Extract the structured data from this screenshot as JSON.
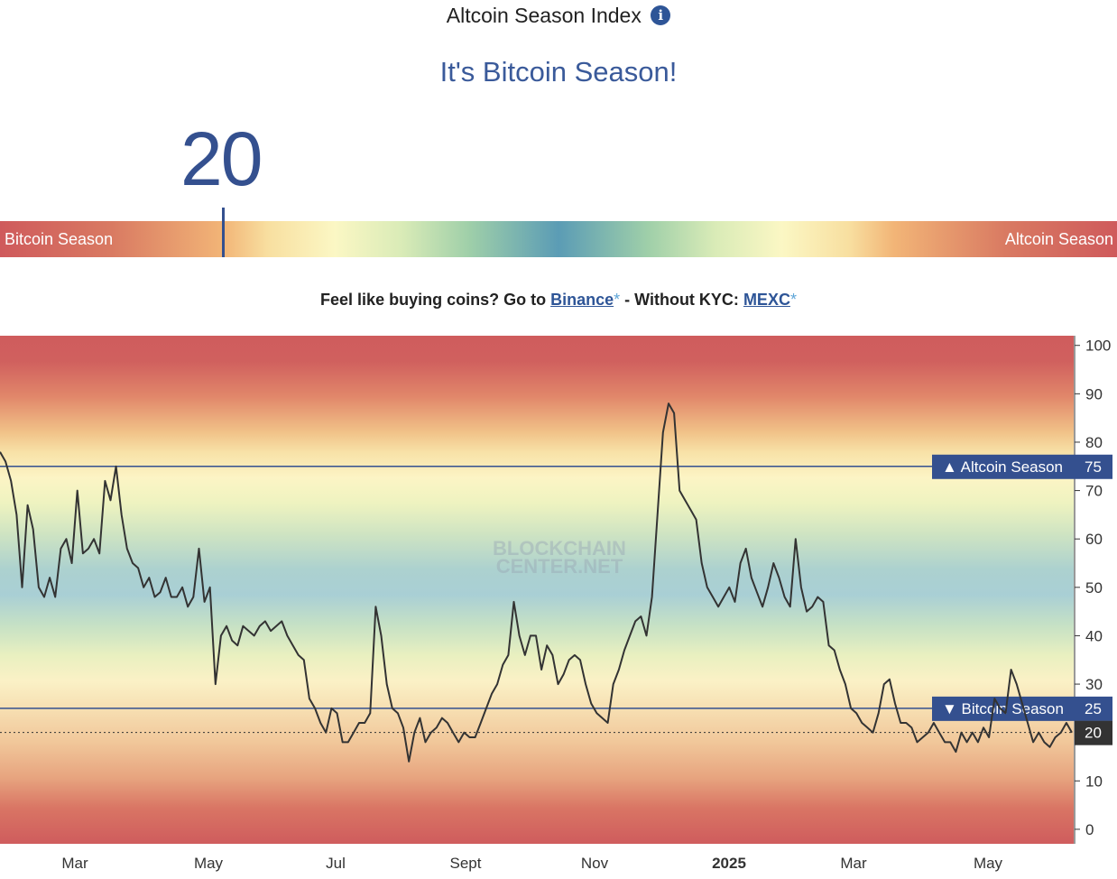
{
  "header": {
    "title": "Altcoin Season Index",
    "info_icon": "info-icon",
    "headline": "It's Bitcoin Season!",
    "current_value": "20"
  },
  "gauge": {
    "left_label": "Bitcoin Season",
    "right_label": "Altcoin Season",
    "value": 20
  },
  "promo": {
    "prefix": "Feel like buying coins? Go to ",
    "link1": "Binance",
    "star1": "*",
    "middle": " - Without KYC: ",
    "link2": "MEXC",
    "star2": "*"
  },
  "colors": {
    "accent": "#34508f",
    "bitcoin_red": "#cf5a5c",
    "mid_blue": "#5b9cb5",
    "line": "#333333"
  },
  "chart_data": {
    "type": "line",
    "ylim": [
      -3,
      102
    ],
    "yticks": [
      "0",
      "10",
      "20",
      "30",
      "40",
      "50",
      "60",
      "70",
      "80",
      "90",
      "100"
    ],
    "xticks": [
      "Mar",
      "May",
      "Jul",
      "Sept",
      "Nov",
      "2025",
      "Mar",
      "May"
    ],
    "watermark": [
      "BLOCKCHAIN",
      "CENTER.NET"
    ],
    "thresholds": [
      {
        "label": "▲ Altcoin Season",
        "value": 75
      },
      {
        "label": "▼ Bitcoin Season",
        "value": 25
      }
    ],
    "current": {
      "value": 20,
      "label": "20"
    },
    "series": [
      {
        "values": [
          78,
          76,
          72,
          65,
          50,
          67,
          62,
          50,
          48,
          52,
          48,
          58,
          60,
          55,
          70,
          57,
          58,
          60,
          57,
          72,
          68,
          75,
          65,
          58,
          55,
          54,
          50,
          52,
          48,
          49,
          52,
          48,
          48,
          50,
          46,
          48,
          58,
          47,
          50,
          30,
          40,
          42,
          39,
          38,
          42,
          41,
          40,
          42,
          43,
          41,
          42,
          43,
          40,
          38,
          36,
          35,
          27,
          25,
          22,
          20,
          25,
          24,
          18,
          18,
          20,
          22,
          22,
          24,
          46,
          40,
          30,
          25,
          24,
          21,
          14,
          20,
          23,
          18,
          20,
          21,
          23,
          22,
          20,
          18,
          20,
          19,
          19,
          22,
          25,
          28,
          30,
          34,
          36,
          47,
          40,
          36,
          40,
          40,
          33,
          38,
          36,
          30,
          32,
          35,
          36,
          35,
          30,
          26,
          24,
          23,
          22,
          30,
          33,
          37,
          40,
          43,
          44,
          40,
          48,
          65,
          82,
          88,
          86,
          70,
          68,
          66,
          64,
          55,
          50,
          48,
          46,
          48,
          50,
          47,
          55,
          58,
          52,
          49,
          46,
          50,
          55,
          52,
          48,
          46,
          60,
          50,
          45,
          46,
          48,
          47,
          38,
          37,
          33,
          30,
          25,
          24,
          22,
          21,
          20,
          24,
          30,
          31,
          26,
          22,
          22,
          21,
          18,
          19,
          20,
          22,
          20,
          18,
          18,
          16,
          20,
          18,
          20,
          18,
          21,
          19,
          27,
          25,
          24,
          33,
          30,
          26,
          22,
          18,
          20,
          18,
          17,
          19,
          20,
          22,
          20
        ]
      }
    ]
  }
}
